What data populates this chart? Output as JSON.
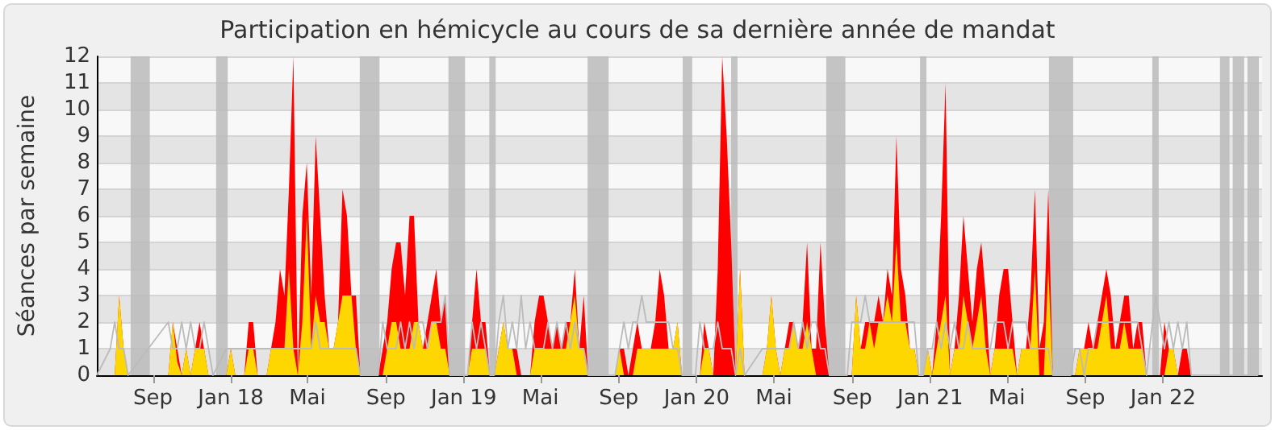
{
  "chart_data": {
    "type": "area",
    "title": "Participation en hémicycle au cours de sa dernière année de mandat",
    "ylabel": "Séances par semaine",
    "x": [
      "2017-06-19",
      "2017-07-10",
      "2017-07-17",
      "2017-07-24",
      "2017-07-31",
      "2017-08-07",
      "2017-10-09",
      "2017-10-16",
      "2017-10-23",
      "2017-10-30",
      "2017-11-06",
      "2017-11-13",
      "2017-11-20",
      "2017-11-27",
      "2017-12-04",
      "2017-12-11",
      "2017-12-18",
      "2018-01-08",
      "2018-01-15",
      "2018-01-22",
      "2018-02-05",
      "2018-02-12",
      "2018-02-19",
      "2018-02-26",
      "2018-03-12",
      "2018-03-19",
      "2018-03-26",
      "2018-04-02",
      "2018-04-09",
      "2018-04-16",
      "2018-04-23",
      "2018-04-30",
      "2018-05-07",
      "2018-05-14",
      "2018-05-21",
      "2018-05-28",
      "2018-06-04",
      "2018-06-11",
      "2018-06-18",
      "2018-06-25",
      "2018-07-02",
      "2018-07-09",
      "2018-07-16",
      "2018-07-23",
      "2018-07-30",
      "2018-08-06",
      "2018-09-03",
      "2018-09-10",
      "2018-09-17",
      "2018-09-24",
      "2018-10-01",
      "2018-10-08",
      "2018-10-15",
      "2018-10-22",
      "2018-10-29",
      "2018-11-05",
      "2018-11-12",
      "2018-11-19",
      "2018-11-26",
      "2018-12-03",
      "2018-12-10",
      "2018-12-17",
      "2018-12-24",
      "2019-01-21",
      "2019-01-28",
      "2019-02-04",
      "2019-02-11",
      "2019-02-18",
      "2019-02-25",
      "2019-03-04",
      "2019-03-11",
      "2019-03-18",
      "2019-03-25",
      "2019-04-01",
      "2019-04-08",
      "2019-04-15",
      "2019-04-22",
      "2019-04-29",
      "2019-05-06",
      "2019-05-13",
      "2019-05-20",
      "2019-05-27",
      "2019-06-03",
      "2019-06-10",
      "2019-06-17",
      "2019-06-24",
      "2019-07-01",
      "2019-07-08",
      "2019-07-15",
      "2019-07-22",
      "2019-07-29",
      "2019-09-09",
      "2019-09-16",
      "2019-09-23",
      "2019-09-30",
      "2019-10-07",
      "2019-10-14",
      "2019-10-21",
      "2019-10-28",
      "2019-11-04",
      "2019-11-11",
      "2019-11-18",
      "2019-11-25",
      "2019-12-02",
      "2019-12-09",
      "2019-12-16",
      "2019-12-23",
      "2020-01-13",
      "2020-01-20",
      "2020-01-27",
      "2020-02-03",
      "2020-02-10",
      "2020-02-17",
      "2020-02-24",
      "2020-03-02",
      "2020-03-09",
      "2020-03-16",
      "2020-03-23",
      "2020-03-30",
      "2020-04-27",
      "2020-05-04",
      "2020-05-11",
      "2020-05-18",
      "2020-05-25",
      "2020-06-01",
      "2020-06-08",
      "2020-06-15",
      "2020-06-22",
      "2020-06-29",
      "2020-07-06",
      "2020-07-13",
      "2020-07-20",
      "2020-07-27",
      "2020-08-03",
      "2020-08-10",
      "2020-09-07",
      "2020-09-14",
      "2020-09-21",
      "2020-09-28",
      "2020-10-05",
      "2020-10-12",
      "2020-10-19",
      "2020-10-26",
      "2020-11-02",
      "2020-11-09",
      "2020-11-16",
      "2020-11-23",
      "2020-11-30",
      "2020-12-07",
      "2020-12-14",
      "2020-12-21",
      "2020-12-28",
      "2021-01-04",
      "2021-01-11",
      "2021-01-18",
      "2021-01-25",
      "2021-02-01",
      "2021-02-08",
      "2021-02-15",
      "2021-02-22",
      "2021-03-01",
      "2021-03-08",
      "2021-03-15",
      "2021-03-22",
      "2021-03-29",
      "2021-04-05",
      "2021-04-12",
      "2021-04-19",
      "2021-04-26",
      "2021-05-03",
      "2021-05-10",
      "2021-05-17",
      "2021-05-24",
      "2021-05-31",
      "2021-06-07",
      "2021-06-14",
      "2021-06-21",
      "2021-06-28",
      "2021-07-05",
      "2021-07-12",
      "2021-07-19",
      "2021-07-26",
      "2021-08-23",
      "2021-08-30",
      "2021-09-06",
      "2021-09-13",
      "2021-09-20",
      "2021-09-27",
      "2021-10-04",
      "2021-10-11",
      "2021-10-18",
      "2021-10-25",
      "2021-11-01",
      "2021-11-08",
      "2021-11-15",
      "2021-11-22",
      "2021-11-29",
      "2021-12-06",
      "2021-12-13",
      "2021-12-20",
      "2022-01-03",
      "2022-01-10",
      "2022-01-17",
      "2022-01-24",
      "2022-01-31",
      "2022-02-07",
      "2022-02-14",
      "2022-02-21",
      "2022-02-28",
      "2022-06-13"
    ],
    "series": [
      {
        "type": "line",
        "color": "#bbbbbb",
        "values": [
          0,
          1,
          2,
          1,
          1,
          0,
          2,
          1,
          1,
          2,
          1,
          2,
          1,
          1,
          2,
          1,
          0,
          1,
          1,
          1,
          1,
          1,
          1,
          1,
          1,
          1,
          1,
          1,
          1,
          1,
          1,
          1,
          1,
          1,
          1,
          2,
          1,
          1,
          1,
          1,
          1,
          1,
          1,
          1,
          1,
          0,
          0,
          2,
          1,
          1,
          1,
          2,
          1,
          2,
          1,
          2,
          2,
          1,
          2,
          2,
          2,
          3,
          0,
          0,
          2,
          1,
          2,
          1,
          0,
          0,
          2,
          3,
          1,
          2,
          1,
          3,
          1,
          2,
          1,
          1,
          1,
          2,
          1,
          2,
          1,
          2,
          1,
          2,
          1,
          1,
          0,
          0,
          1,
          2,
          1,
          2,
          2,
          3,
          2,
          2,
          2,
          2,
          2,
          2,
          1,
          1,
          0,
          0,
          2,
          1,
          1,
          1,
          2,
          1,
          1,
          1,
          0,
          1,
          0,
          1,
          1,
          1,
          1,
          1,
          1,
          1,
          2,
          1,
          2,
          1,
          2,
          2,
          1,
          1,
          0,
          0,
          2,
          2,
          2,
          3,
          2,
          2,
          2,
          2,
          2,
          2,
          2,
          2,
          2,
          2,
          2,
          0,
          0,
          1,
          1,
          2,
          1,
          2,
          1,
          2,
          1,
          1,
          2,
          1,
          1,
          1,
          1,
          1,
          2,
          2,
          2,
          1,
          2,
          2,
          2,
          2,
          1,
          1,
          1,
          1,
          1,
          0,
          0,
          1,
          1,
          0,
          1,
          1,
          2,
          2,
          2,
          2,
          2,
          2,
          2,
          2,
          2,
          2,
          1,
          0,
          3,
          2,
          1,
          2,
          1,
          2,
          1,
          2,
          0,
          0
        ]
      },
      {
        "color": "#ff0000",
        "values": [
          0,
          0,
          0,
          3,
          1,
          0,
          0,
          2,
          1,
          0,
          1,
          0,
          1,
          2,
          1,
          0,
          0,
          0,
          1,
          0,
          0,
          2,
          2,
          0,
          0,
          1,
          2,
          4,
          3,
          7,
          12,
          0,
          6,
          8,
          3,
          9,
          6,
          3,
          1,
          1,
          2,
          7,
          6,
          3,
          3,
          0,
          0,
          1,
          2,
          4,
          5,
          5,
          3,
          6,
          6,
          2,
          1,
          2,
          3,
          4,
          2,
          3,
          0,
          0,
          2,
          4,
          2,
          2,
          0,
          0,
          1,
          2,
          1,
          1,
          1,
          0,
          0,
          0,
          2,
          3,
          3,
          2,
          1,
          2,
          1,
          2,
          2,
          4,
          1,
          3,
          0,
          0,
          1,
          1,
          0,
          1,
          2,
          1,
          1,
          1,
          2,
          4,
          3,
          1,
          1,
          2,
          0,
          0,
          0,
          2,
          1,
          0,
          4,
          12,
          9,
          5,
          0,
          4,
          0,
          0,
          1,
          3,
          1,
          0,
          1,
          2,
          2,
          1,
          2,
          5,
          1,
          1,
          5,
          2,
          0,
          0,
          0,
          3,
          1,
          2,
          2,
          2,
          3,
          2,
          4,
          3,
          9,
          4,
          3,
          1,
          1,
          0,
          0,
          1,
          0,
          2,
          6,
          11,
          0,
          1,
          3,
          6,
          4,
          2,
          4,
          5,
          3,
          0,
          1,
          3,
          4,
          4,
          2,
          0,
          1,
          1,
          3,
          7,
          1,
          2,
          7,
          0,
          0,
          0,
          1,
          1,
          2,
          1,
          2,
          3,
          4,
          3,
          1,
          2,
          3,
          3,
          1,
          2,
          2,
          0,
          0,
          0,
          2,
          1,
          1,
          0,
          1,
          1,
          0,
          0
        ]
      },
      {
        "color": "#ffd700",
        "values": [
          0,
          0,
          0,
          3,
          1,
          0,
          0,
          2,
          0.5,
          0,
          1,
          0,
          1,
          1,
          1,
          0,
          0,
          0,
          1,
          0,
          0,
          1,
          1,
          0,
          0,
          1,
          1,
          1,
          1,
          4,
          1,
          0,
          2,
          6,
          1,
          3,
          2,
          2,
          1,
          1,
          2,
          3,
          3,
          3,
          1,
          0,
          0,
          0,
          1,
          2,
          2,
          1,
          1,
          1,
          2,
          2,
          1,
          1,
          2,
          2,
          1,
          1,
          0,
          0,
          1,
          1,
          1,
          1,
          0,
          0,
          1,
          2,
          1,
          1,
          0,
          0,
          0,
          0,
          1,
          1,
          1,
          1,
          1,
          1,
          1,
          1,
          2,
          3,
          1,
          1,
          0,
          0,
          1,
          0,
          0,
          0,
          1,
          1,
          1,
          1,
          1,
          1,
          1,
          1,
          1,
          2,
          0,
          0,
          0,
          1,
          1,
          0,
          0,
          0,
          0,
          0,
          0,
          4,
          0,
          0,
          1,
          3,
          1,
          0,
          1,
          1,
          2,
          1,
          1,
          2,
          1,
          0,
          0,
          0,
          0,
          0,
          0,
          3,
          1,
          1,
          2,
          1,
          2,
          2,
          3,
          2,
          5,
          2,
          2,
          1,
          1,
          0,
          0,
          1,
          0,
          1,
          2,
          3,
          0,
          1,
          1,
          3,
          2,
          1,
          2,
          3,
          1,
          0,
          1,
          1,
          1,
          1,
          1,
          0,
          1,
          1,
          1,
          4,
          0,
          0,
          4,
          0,
          0,
          0,
          1,
          1,
          1,
          1,
          1,
          2,
          3,
          1,
          1,
          1,
          2,
          1,
          1,
          1,
          1,
          0,
          0,
          0,
          0,
          1,
          1,
          0,
          0,
          0,
          0,
          0
        ]
      }
    ],
    "xlim": [
      "2017-06-19",
      "2022-06-19"
    ],
    "xticks": [
      {
        "value": "2017-09-15",
        "label": "Sep"
      },
      {
        "value": "2018-01-15",
        "label": "Jan 18"
      },
      {
        "value": "2018-05-15",
        "label": "Mai"
      },
      {
        "value": "2018-09-15",
        "label": "Sep"
      },
      {
        "value": "2019-01-15",
        "label": "Jan 19"
      },
      {
        "value": "2019-05-15",
        "label": "Mai"
      },
      {
        "value": "2019-09-15",
        "label": "Sep"
      },
      {
        "value": "2020-01-15",
        "label": "Jan 20"
      },
      {
        "value": "2020-05-15",
        "label": "Mai"
      },
      {
        "value": "2020-09-15",
        "label": "Sep"
      },
      {
        "value": "2021-01-15",
        "label": "Jan 21"
      },
      {
        "value": "2021-05-15",
        "label": "Mai"
      },
      {
        "value": "2021-09-15",
        "label": "Sep"
      },
      {
        "value": "2022-01-15",
        "label": "Jan 22"
      }
    ],
    "ylim": [
      0,
      12
    ],
    "yticks": [
      0,
      1,
      2,
      3,
      4,
      5,
      6,
      7,
      8,
      9,
      10,
      11,
      12
    ],
    "grid": "y",
    "bands": [
      {
        "axis": "x",
        "from": "2017-08-11",
        "to": "2017-09-10",
        "color": "#bbbbbb"
      },
      {
        "axis": "x",
        "from": "2017-12-23",
        "to": "2018-01-10",
        "color": "#bbbbbb"
      },
      {
        "axis": "x",
        "from": "2018-08-05",
        "to": "2018-09-05",
        "color": "#bbbbbb"
      },
      {
        "axis": "x",
        "from": "2018-12-22",
        "to": "2019-01-17",
        "color": "#bbbbbb"
      },
      {
        "axis": "x",
        "from": "2019-02-24",
        "to": "2019-03-06",
        "color": "#bbbbbb"
      },
      {
        "axis": "x",
        "from": "2019-07-28",
        "to": "2019-08-30",
        "color": "#bbbbbb"
      },
      {
        "axis": "x",
        "from": "2019-12-24",
        "to": "2020-01-08",
        "color": "#bbbbbb"
      },
      {
        "axis": "x",
        "from": "2020-03-09",
        "to": "2020-03-19",
        "color": "#bbbbbb"
      },
      {
        "axis": "x",
        "from": "2020-08-05",
        "to": "2020-09-04",
        "color": "#bbbbbb"
      },
      {
        "axis": "x",
        "from": "2020-12-30",
        "to": "2021-01-09",
        "color": "#bbbbbb"
      },
      {
        "axis": "x",
        "from": "2021-07-20",
        "to": "2021-08-27",
        "color": "#bbbbbb"
      },
      {
        "axis": "x",
        "from": "2021-12-29",
        "to": "2022-01-08",
        "color": "#bbbbbb"
      },
      {
        "axis": "x",
        "from": "2022-04-14",
        "to": "2022-04-29",
        "color": "#bbbbbb"
      },
      {
        "axis": "x",
        "from": "2022-05-04",
        "to": "2022-05-22",
        "color": "#bbbbbb"
      },
      {
        "axis": "x",
        "from": "2022-05-27",
        "to": "2022-06-14",
        "color": "#bbbbbb"
      }
    ]
  }
}
